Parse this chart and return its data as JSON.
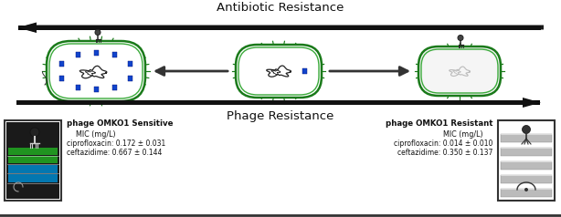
{
  "title_antibiotic": "Antibiotic Resistance",
  "title_phage": "Phage Resistance",
  "label_sensitive": "phage OMKO1 Sensitive",
  "label_resistant": "phage OMKO1 Resistant",
  "mic_label": "MIC (mg/L)",
  "cipro_sensitive": "ciprofloxacin: 0.172 ± 0.031",
  "ceftaz_sensitive": "ceftazidime: 0.667 ± 0.144",
  "cipro_resistant": "ciprofloxacin: 0.014 ± 0.010",
  "ceftaz_resistant": "ceftazidime: 0.350 ± 0.137",
  "bg_color": "#ffffff",
  "arrow_color": "#1a1a1a",
  "bacteria_outline": "#1a7a1a",
  "bacteria_inner": "#3aaa3a",
  "text_color": "#111111",
  "pump_blue": "#1144cc",
  "pump_green": "#22aa22",
  "pump_cyan": "#0088cc",
  "stripe_dark": "#555555",
  "stripe_light": "#aaaaaa"
}
